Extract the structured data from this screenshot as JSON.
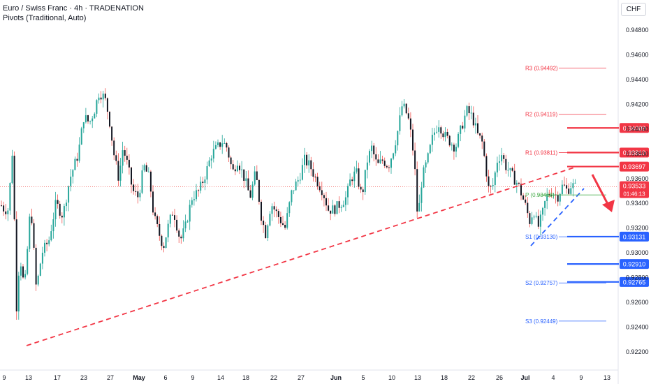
{
  "header": {
    "title": "Euro / Swiss Franc · 4h · TRADENATION",
    "indicator": "Pivots (Traditional, Auto)",
    "currency": "CHF"
  },
  "colors": {
    "bull": "#26a69a",
    "bear": "#ef5350",
    "candle_body": "#131722",
    "resistance": "#f23645",
    "support": "#2962ff",
    "pivot_green": "#4caf50",
    "grid_text": "#131722"
  },
  "chart_data": {
    "type": "candlestick",
    "instrument": "Euro / Swiss Franc",
    "timeframe": "4h",
    "ylim": [
      0.921,
      0.95
    ],
    "y_ticks": [
      "0.94800",
      "0.94600",
      "0.94400",
      "0.94200",
      "0.94000",
      "0.93800",
      "0.93600",
      "0.93400",
      "0.93200",
      "0.93000",
      "0.92800",
      "0.92600",
      "0.92400",
      "0.92200"
    ],
    "x_ticks": [
      "9",
      "13",
      "17",
      "23",
      "27",
      "May",
      "6",
      "9",
      "14",
      "18",
      "22",
      "27",
      "Jun",
      "5",
      "10",
      "13",
      "18",
      "22",
      "26",
      "Jul",
      "4",
      "9",
      "13"
    ],
    "last_price": "0.93533",
    "countdown": "01:46:13",
    "pivots": [
      {
        "name": "R3",
        "label": "R3 (0.94492)",
        "value": 0.94492
      },
      {
        "name": "R2",
        "label": "R2 (0.94119)",
        "value": 0.94119
      },
      {
        "name": "R1",
        "label": "R1 (0.93811)",
        "value": 0.93811
      },
      {
        "name": "P",
        "label": "P (0.93468)",
        "value": 0.93468
      },
      {
        "name": "S1",
        "label": "S1 (0.93130)",
        "value": 0.9313
      },
      {
        "name": "S2",
        "label": "S2 (0.92757)",
        "value": 0.92757
      },
      {
        "name": "S3",
        "label": "S3 (0.92449)",
        "value": 0.92449
      }
    ],
    "levels": [
      {
        "label": "0.94009",
        "value": 0.94009,
        "kind": "resistance"
      },
      {
        "label": "0.93810",
        "value": 0.9381,
        "kind": "resistance"
      },
      {
        "label": "0.93697",
        "value": 0.93697,
        "kind": "resistance"
      },
      {
        "label": "0.93131",
        "value": 0.93131,
        "kind": "support"
      },
      {
        "label": "0.92910",
        "value": 0.9291,
        "kind": "support"
      },
      {
        "label": "0.92765",
        "value": 0.92765,
        "kind": "support"
      }
    ],
    "path": [
      [
        0,
        0.934
      ],
      [
        6,
        0.9335
      ],
      [
        12,
        0.9335
      ],
      [
        18,
        0.9385
      ],
      [
        24,
        0.925
      ],
      [
        28,
        0.93
      ],
      [
        35,
        0.927
      ],
      [
        44,
        0.934
      ],
      [
        52,
        0.927
      ],
      [
        60,
        0.93
      ],
      [
        70,
        0.931
      ],
      [
        80,
        0.934
      ],
      [
        90,
        0.933
      ],
      [
        100,
        0.936
      ],
      [
        112,
        0.938
      ],
      [
        120,
        0.941
      ],
      [
        128,
        0.9405
      ],
      [
        135,
        0.9415
      ],
      [
        142,
        0.943
      ],
      [
        150,
        0.9425
      ],
      [
        156,
        0.941
      ],
      [
        163,
        0.938
      ],
      [
        170,
        0.936
      ],
      [
        176,
        0.9385
      ],
      [
        183,
        0.937
      ],
      [
        190,
        0.935
      ],
      [
        198,
        0.9345
      ],
      [
        206,
        0.937
      ],
      [
        214,
        0.936
      ],
      [
        220,
        0.933
      ],
      [
        228,
        0.9315
      ],
      [
        234,
        0.9305
      ],
      [
        240,
        0.932
      ],
      [
        248,
        0.9335
      ],
      [
        258,
        0.931
      ],
      [
        265,
        0.932
      ],
      [
        275,
        0.9345
      ],
      [
        285,
        0.935
      ],
      [
        295,
        0.9365
      ],
      [
        303,
        0.938
      ],
      [
        311,
        0.9385
      ],
      [
        318,
        0.939
      ],
      [
        325,
        0.9385
      ],
      [
        333,
        0.9365
      ],
      [
        340,
        0.9375
      ],
      [
        350,
        0.936
      ],
      [
        358,
        0.9345
      ],
      [
        366,
        0.9365
      ],
      [
        374,
        0.933
      ],
      [
        380,
        0.9315
      ],
      [
        388,
        0.934
      ],
      [
        398,
        0.933
      ],
      [
        408,
        0.932
      ],
      [
        418,
        0.935
      ],
      [
        428,
        0.936
      ],
      [
        436,
        0.9375
      ],
      [
        444,
        0.937
      ],
      [
        452,
        0.936
      ],
      [
        462,
        0.935
      ],
      [
        470,
        0.9335
      ],
      [
        478,
        0.9335
      ],
      [
        488,
        0.934
      ],
      [
        496,
        0.9345
      ],
      [
        502,
        0.936
      ],
      [
        510,
        0.9365
      ],
      [
        518,
        0.9345
      ],
      [
        526,
        0.9375
      ],
      [
        532,
        0.9385
      ],
      [
        540,
        0.937
      ],
      [
        548,
        0.9375
      ],
      [
        556,
        0.937
      ],
      [
        564,
        0.9385
      ],
      [
        570,
        0.94
      ],
      [
        576,
        0.942
      ],
      [
        584,
        0.941
      ],
      [
        590,
        0.939
      ],
      [
        595,
        0.936
      ],
      [
        598,
        0.9325
      ],
      [
        604,
        0.936
      ],
      [
        612,
        0.9375
      ],
      [
        620,
        0.9395
      ],
      [
        628,
        0.9405
      ],
      [
        636,
        0.9395
      ],
      [
        644,
        0.939
      ],
      [
        652,
        0.9385
      ],
      [
        660,
        0.94
      ],
      [
        668,
        0.9415
      ],
      [
        676,
        0.941
      ],
      [
        684,
        0.9395
      ],
      [
        690,
        0.939
      ],
      [
        694,
        0.9375
      ],
      [
        700,
        0.935
      ],
      [
        706,
        0.9355
      ],
      [
        712,
        0.9375
      ],
      [
        718,
        0.938
      ],
      [
        724,
        0.937
      ],
      [
        730,
        0.9365
      ],
      [
        736,
        0.936
      ],
      [
        742,
        0.9355
      ],
      [
        748,
        0.9345
      ],
      [
        754,
        0.9335
      ],
      [
        758,
        0.9325
      ],
      [
        764,
        0.9335
      ],
      [
        770,
        0.932
      ],
      [
        776,
        0.933
      ],
      [
        782,
        0.9345
      ],
      [
        790,
        0.935
      ],
      [
        798,
        0.9345
      ],
      [
        806,
        0.9355
      ],
      [
        812,
        0.935
      ],
      [
        818,
        0.9355
      ],
      [
        824,
        0.9353
      ]
    ]
  }
}
